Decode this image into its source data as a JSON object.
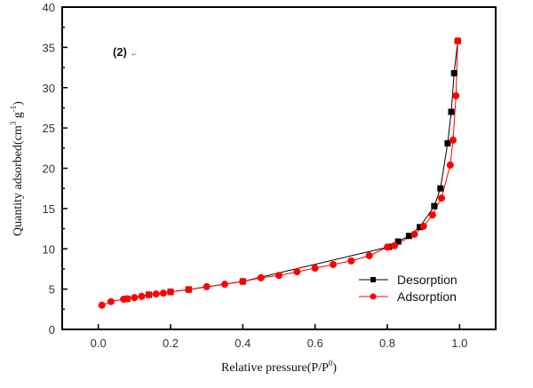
{
  "chart_data": {
    "type": "line",
    "title": "",
    "annotation": "(2)",
    "annotation_mark": "↵",
    "xlabel": "Relative pressure(P/P",
    "xlabel_sup": "0",
    "xlabel_end": ")",
    "ylabel": "Quantity adsorbed(cm",
    "ylabel_sup1": "3",
    "ylabel_mid": " g",
    "ylabel_sup2": "-1",
    "ylabel_end": ")",
    "xlim": [
      -0.1,
      1.1
    ],
    "ylim": [
      0,
      40
    ],
    "x_ticks": [
      0.0,
      0.2,
      0.4,
      0.6,
      0.8,
      1.0
    ],
    "x_tick_labels": [
      "0.0",
      "0.2",
      "0.4",
      "0.6",
      "0.8",
      "1.0"
    ],
    "y_ticks": [
      0,
      5,
      10,
      15,
      20,
      25,
      30,
      35,
      40
    ],
    "y_tick_labels": [
      "0",
      "5",
      "10",
      "15",
      "20",
      "25",
      "30",
      "35",
      "40"
    ],
    "grid": false,
    "legend_position": "bottom-right",
    "series": [
      {
        "name": "Desorption",
        "color": "#000000",
        "marker": "square",
        "x": [
          0.08,
          0.14,
          0.2,
          0.25,
          0.4,
          0.805,
          0.83,
          0.86,
          0.89,
          0.93,
          0.947,
          0.967,
          0.977,
          0.985,
          0.995
        ],
        "y": [
          3.8,
          4.3,
          4.65,
          4.95,
          5.95,
          10.25,
          10.9,
          11.6,
          12.7,
          15.3,
          17.5,
          23.1,
          27.0,
          31.8,
          35.8
        ]
      },
      {
        "name": "Adsorption",
        "color": "#ff0000",
        "marker": "circle",
        "x": [
          0.01,
          0.035,
          0.07,
          0.08,
          0.1,
          0.12,
          0.14,
          0.16,
          0.18,
          0.2,
          0.25,
          0.3,
          0.35,
          0.4,
          0.45,
          0.5,
          0.55,
          0.6,
          0.65,
          0.7,
          0.75,
          0.8,
          0.82,
          0.875,
          0.9,
          0.925,
          0.95,
          0.974,
          0.982,
          0.99,
          0.995
        ],
        "y": [
          3.0,
          3.45,
          3.75,
          3.8,
          3.95,
          4.1,
          4.3,
          4.4,
          4.5,
          4.65,
          4.95,
          5.3,
          5.6,
          5.95,
          6.4,
          6.7,
          7.15,
          7.6,
          8.05,
          8.5,
          9.15,
          10.2,
          10.4,
          11.8,
          12.8,
          14.2,
          16.3,
          20.4,
          23.5,
          29.0,
          35.8
        ]
      }
    ]
  }
}
